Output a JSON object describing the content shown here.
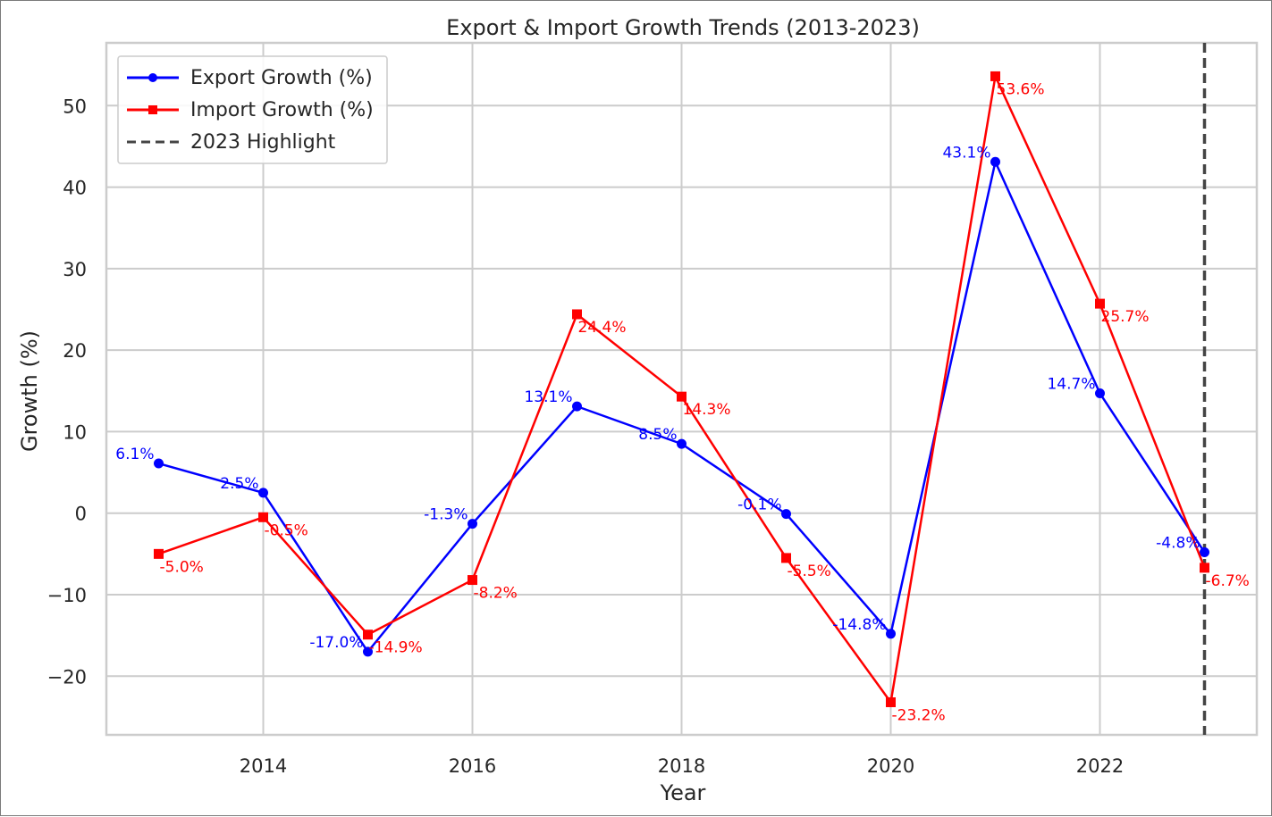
{
  "chart_data": {
    "type": "line",
    "title": "Export & Import Growth Trends (2013-2023)",
    "xlabel": "Year",
    "ylabel": "Growth (%)",
    "x": [
      2013,
      2014,
      2015,
      2016,
      2017,
      2018,
      2019,
      2020,
      2021,
      2022,
      2023
    ],
    "xlim": [
      2012.5,
      2023.5
    ],
    "ylim": [
      -27.2,
      57.7
    ],
    "xticks": [
      2014,
      2016,
      2018,
      2020,
      2022
    ],
    "yticks": [
      -20,
      -10,
      0,
      10,
      20,
      30,
      40,
      50
    ],
    "ytick_labels": [
      "−20",
      "−10",
      "0",
      "10",
      "20",
      "30",
      "40",
      "50"
    ],
    "grid": true,
    "legend_position": "top-left",
    "series": [
      {
        "name": "Export Growth (%)",
        "color": "#0000ff",
        "marker": "circle",
        "values": [
          6.1,
          2.5,
          -17.0,
          -1.3,
          13.1,
          8.5,
          -0.1,
          -14.8,
          43.1,
          14.7,
          -4.8
        ],
        "labels": [
          "6.1%",
          "2.5%",
          "-17.0%",
          "-1.3%",
          "13.1%",
          "8.5%",
          "-0.1%",
          "-14.8%",
          "43.1%",
          "14.7%",
          "-4.8%"
        ]
      },
      {
        "name": "Import Growth (%)",
        "color": "#ff0000",
        "marker": "square",
        "values": [
          -5.0,
          -0.5,
          -14.9,
          -8.2,
          24.4,
          14.3,
          -5.5,
          -23.2,
          53.6,
          25.7,
          -6.7
        ],
        "labels": [
          "-5.0%",
          "-0.5%",
          "-14.9%",
          "-8.2%",
          "24.4%",
          "14.3%",
          "-5.5%",
          "-23.2%",
          "53.6%",
          "25.7%",
          "-6.7%"
        ]
      }
    ],
    "highlight": {
      "name": "2023 Highlight",
      "x": 2023,
      "color": "#444444",
      "style": "dashed"
    }
  }
}
